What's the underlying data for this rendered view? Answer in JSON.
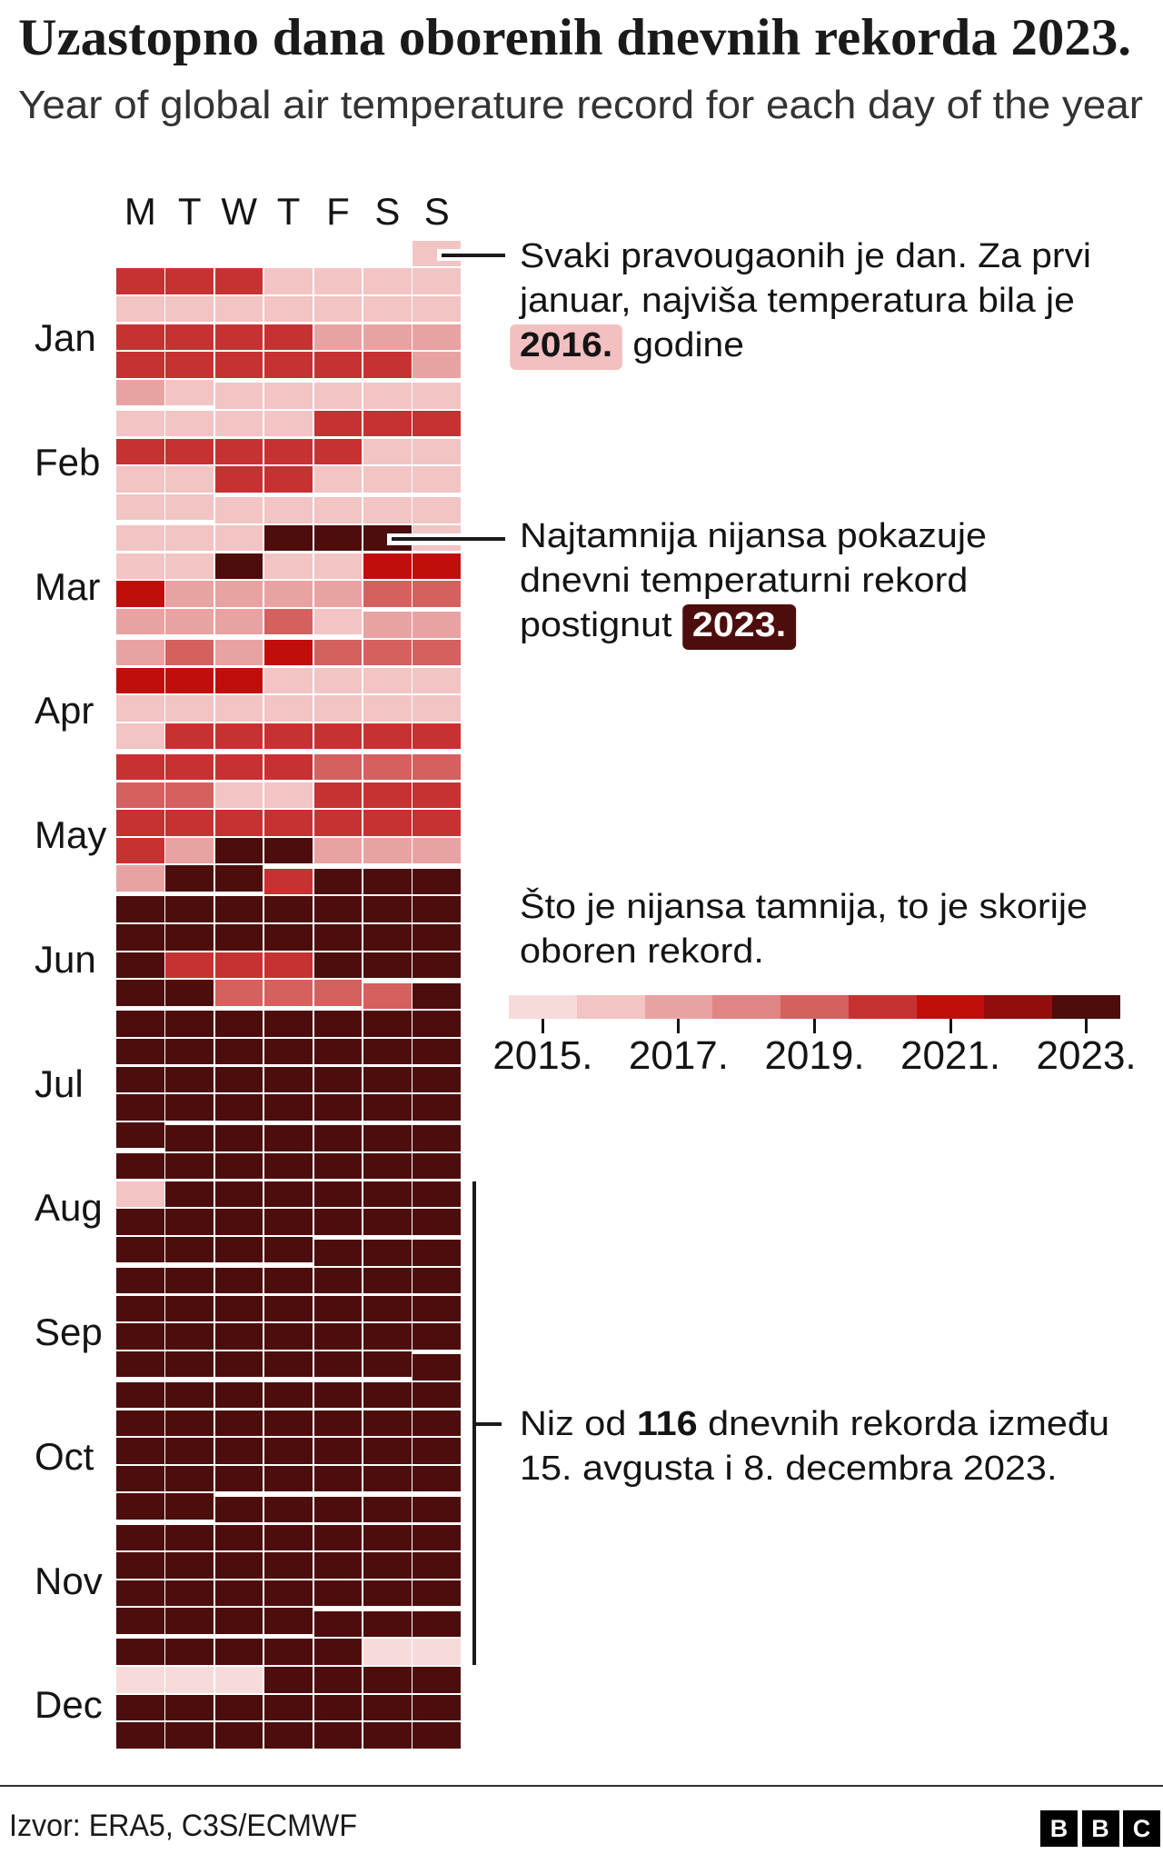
{
  "title": "Uzastopno dana oborenih dnevnih rekorda 2023.",
  "subtitle": "Year of global air temperature record for each day of the year",
  "calendar": {
    "weekday_headers": [
      "M",
      "T",
      "W",
      "T",
      "F",
      "S",
      "S"
    ],
    "month_labels": [
      "Jan",
      "Feb",
      "Mar",
      "Apr",
      "May",
      "Jun",
      "Jul",
      "Aug",
      "Sep",
      "Oct",
      "Nov",
      "Dec"
    ]
  },
  "annotations": {
    "jan1_note": {
      "lines": [
        [
          {
            "t": "Svaki pravougaonih je dan. Za prvi",
            "s": "p"
          }
        ],
        [
          {
            "t": "januar, najviša temperatura bila je",
            "s": "p"
          }
        ],
        [
          {
            "t": "2016.",
            "s": "hl-pink"
          },
          {
            "t": " godine",
            "s": "p"
          }
        ]
      ]
    },
    "darkest_note": {
      "lines": [
        [
          {
            "t": "Najtamnija nijansa pokazuje",
            "s": "p"
          }
        ],
        [
          {
            "t": "dnevni temperaturni rekord",
            "s": "p"
          }
        ],
        [
          {
            "t": "postignut ",
            "s": "p"
          },
          {
            "t": "2023.",
            "s": "hl-dark"
          }
        ]
      ]
    },
    "streak_note": {
      "lines": [
        [
          {
            "t": "Niz od ",
            "s": "p"
          },
          {
            "t": "116",
            "s": "b"
          },
          {
            "t": " dnevnih rekorda između",
            "s": "p"
          }
        ],
        [
          {
            "t": "15. avgusta i 8. decembra 2023.",
            "s": "p"
          }
        ]
      ]
    },
    "legend_note": {
      "lines": [
        [
          {
            "t": "Što je nijansa tamnija, to je skorije",
            "s": "p"
          }
        ],
        [
          {
            "t": "oboren rekord.",
            "s": "p"
          }
        ]
      ]
    }
  },
  "legend": {
    "tick_labels": [
      "2015.",
      "2017.",
      "2019.",
      "2021.",
      "2023."
    ]
  },
  "footer": {
    "source": "Izvor: ERA5, C3S/ECMWF",
    "logo_letters": [
      "B",
      "B",
      "C"
    ]
  },
  "chart_data": {
    "type": "heatmap",
    "title": "Uzastopno dana oborenih dnevnih rekorda 2023.",
    "subtitle": "Year of global air temperature record for each day of the year",
    "value_meaning": "year in which the daily global air temperature record was set",
    "calendar_year": 2023,
    "jan1_weekday": "Sunday",
    "weekday_columns": [
      "M",
      "T",
      "W",
      "T",
      "F",
      "S",
      "S"
    ],
    "months": [
      "Jan",
      "Feb",
      "Mar",
      "Apr",
      "May",
      "Jun",
      "Jul",
      "Aug",
      "Sep",
      "Oct",
      "Nov",
      "Dec"
    ],
    "days_in_month": [
      31,
      28,
      31,
      30,
      31,
      30,
      31,
      31,
      30,
      31,
      30,
      31
    ],
    "legend_range": [
      2015,
      2023
    ],
    "palette": {
      "2015": "#f7dbdb",
      "2016": "#f2c4c4",
      "2017": "#e9a2a2",
      "2018": "#e08585",
      "2019": "#d46060",
      "2020": "#c63232",
      "2021": "#c20d0d",
      "2022": "#940d0d",
      "2023": "#4d0d0d"
    },
    "record_year_by_day": {
      "Jan": [
        2016,
        2020,
        2020,
        2020,
        2016,
        2016,
        2016,
        2016,
        2016,
        2016,
        2016,
        2016,
        2016,
        2016,
        2016,
        2020,
        2020,
        2020,
        2020,
        2017,
        2017,
        2017,
        2020,
        2020,
        2020,
        2020,
        2020,
        2020,
        2017,
        2017,
        2016
      ],
      "Feb": [
        2016,
        2016,
        2016,
        2016,
        2016,
        2016,
        2016,
        2016,
        2016,
        2020,
        2020,
        2020,
        2020,
        2020,
        2020,
        2020,
        2020,
        2016,
        2016,
        2016,
        2016,
        2020,
        2020,
        2016,
        2016,
        2016,
        2016,
        2016
      ],
      "Mar": [
        2016,
        2016,
        2016,
        2016,
        2016,
        2016,
        2016,
        2016,
        2023,
        2023,
        2023,
        2016,
        2016,
        2016,
        2023,
        2016,
        2016,
        2021,
        2021,
        2021,
        2017,
        2017,
        2017,
        2017,
        2019,
        2019,
        2017,
        2017,
        2017,
        2019,
        2016
      ],
      "Apr": [
        2017,
        2017,
        2017,
        2019,
        2017,
        2021,
        2019,
        2019,
        2019,
        2021,
        2021,
        2021,
        2016,
        2016,
        2016,
        2016,
        2016,
        2016,
        2016,
        2016,
        2016,
        2016,
        2016,
        2016,
        2020,
        2020,
        2020,
        2020,
        2020,
        2020
      ],
      "May": [
        2020,
        2020,
        2020,
        2020,
        2019,
        2019,
        2019,
        2019,
        2019,
        2016,
        2016,
        2020,
        2020,
        2020,
        2020,
        2020,
        2020,
        2020,
        2020,
        2020,
        2020,
        2020,
        2017,
        2023,
        2023,
        2017,
        2017,
        2017,
        2017,
        2023,
        2023
      ],
      "Jun": [
        2020,
        2023,
        2023,
        2023,
        2023,
        2023,
        2023,
        2023,
        2023,
        2023,
        2023,
        2023,
        2023,
        2023,
        2023,
        2023,
        2023,
        2023,
        2023,
        2020,
        2020,
        2020,
        2023,
        2023,
        2023,
        2023,
        2023,
        2019,
        2019,
        2019
      ],
      "Jul": [
        2019,
        2023,
        2023,
        2023,
        2023,
        2023,
        2023,
        2023,
        2023,
        2023,
        2023,
        2023,
        2023,
        2023,
        2023,
        2023,
        2023,
        2023,
        2023,
        2023,
        2023,
        2023,
        2023,
        2023,
        2023,
        2023,
        2023,
        2023,
        2023,
        2023,
        2023
      ],
      "Aug": [
        2023,
        2023,
        2023,
        2023,
        2023,
        2023,
        2023,
        2023,
        2023,
        2023,
        2023,
        2023,
        2023,
        2016,
        2023,
        2023,
        2023,
        2023,
        2023,
        2023,
        2023,
        2023,
        2023,
        2023,
        2023,
        2023,
        2023,
        2023,
        2023,
        2023,
        2023
      ],
      "Sep": [
        2023,
        2023,
        2023,
        2023,
        2023,
        2023,
        2023,
        2023,
        2023,
        2023,
        2023,
        2023,
        2023,
        2023,
        2023,
        2023,
        2023,
        2023,
        2023,
        2023,
        2023,
        2023,
        2023,
        2023,
        2023,
        2023,
        2023,
        2023,
        2023,
        2023
      ],
      "Oct": [
        2023,
        2023,
        2023,
        2023,
        2023,
        2023,
        2023,
        2023,
        2023,
        2023,
        2023,
        2023,
        2023,
        2023,
        2023,
        2023,
        2023,
        2023,
        2023,
        2023,
        2023,
        2023,
        2023,
        2023,
        2023,
        2023,
        2023,
        2023,
        2023,
        2023,
        2023
      ],
      "Nov": [
        2023,
        2023,
        2023,
        2023,
        2023,
        2023,
        2023,
        2023,
        2023,
        2023,
        2023,
        2023,
        2023,
        2023,
        2023,
        2023,
        2023,
        2023,
        2023,
        2023,
        2023,
        2023,
        2023,
        2023,
        2023,
        2023,
        2023,
        2023,
        2023,
        2023
      ],
      "Dec": [
        2023,
        2023,
        2023,
        2023,
        2023,
        2023,
        2023,
        2023,
        2015,
        2015,
        2015,
        2015,
        2015,
        2023,
        2023,
        2023,
        2023,
        2023,
        2023,
        2023,
        2023,
        2023,
        2023,
        2023,
        2023,
        2023,
        2023,
        2023,
        2023,
        2023,
        2023
      ]
    },
    "annotated_facts": {
      "jan1_record_year": 2016,
      "darkest_shade_year": 2023,
      "streak_days": 116,
      "streak_start": "15. avgusta 2023.",
      "streak_end": "8. decembra 2023."
    }
  }
}
